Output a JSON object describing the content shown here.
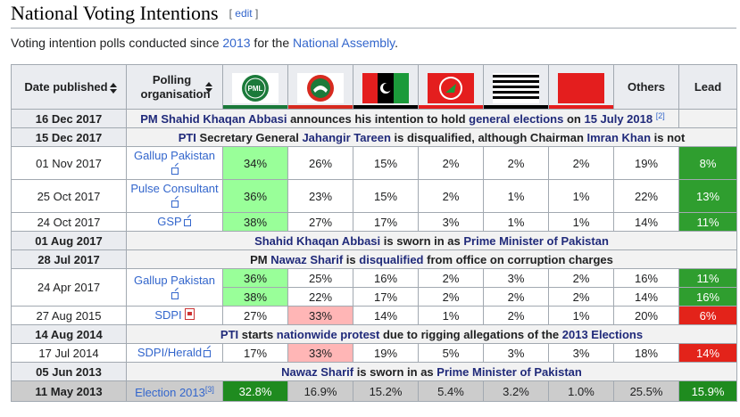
{
  "heading": {
    "title": "National Voting Intentions",
    "edit_open": "[ ",
    "edit": "edit",
    "edit_close": " ]"
  },
  "intro": {
    "pre": "Voting intention polls conducted since ",
    "year": "2013",
    "mid": " for the ",
    "assembly": "National Assembly",
    "post": "."
  },
  "header": {
    "date": "Date published",
    "org": "Polling organisation",
    "others": "Others",
    "lead": "Lead",
    "pmln_text": "PML",
    "parties": [
      {
        "icon": "pmln-tiger-icon",
        "color": "#1b7a3a"
      },
      {
        "icon": "pti-bat-icon",
        "color": "#d72a1f"
      },
      {
        "icon": "ppp-arrow-icon",
        "color": "#000000"
      },
      {
        "icon": "mqm-kite-icon",
        "color": "#e41e1e"
      },
      {
        "icon": "mma-book-icon",
        "color": "#000000"
      },
      {
        "icon": "anp-lantern-icon",
        "color": "#e41e1e"
      }
    ]
  },
  "rows": {
    "e1": {
      "date": "16 Dec 2017",
      "a": "PM ",
      "b": "Shahid Khaqan Abbasi",
      "c": " announces his intention to hold ",
      "d": "general elections",
      "e": " on ",
      "f": "15 July 2018",
      "ref": "[2]"
    },
    "e2": {
      "date": "15 Dec 2017",
      "a": "PTI",
      "b": " Secretary General ",
      "c": "Jahangir Tareen",
      "d": " is disqualified, although Chairman ",
      "e": "Imran Khan",
      "f": " is not"
    },
    "p1": {
      "date": "01 Nov 2017",
      "org": "Gallup Pakistan",
      "v": [
        "34%",
        "26%",
        "15%",
        "2%",
        "2%",
        "2%",
        "19%"
      ],
      "lead": "8%"
    },
    "p2": {
      "date": "25 Oct 2017",
      "org": "Pulse Consultant",
      "v": [
        "36%",
        "23%",
        "15%",
        "2%",
        "1%",
        "1%",
        "22%"
      ],
      "lead": "13%"
    },
    "p3": {
      "date": "24 Oct 2017",
      "org": "GSP",
      "v": [
        "38%",
        "27%",
        "17%",
        "3%",
        "1%",
        "1%",
        "14%"
      ],
      "lead": "11%"
    },
    "e3": {
      "date": "01 Aug 2017",
      "a": "Shahid Khaqan Abbasi",
      "b": " is sworn in as ",
      "c": "Prime Minister of Pakistan"
    },
    "e4": {
      "date": "28 Jul 2017",
      "a": "PM ",
      "b": "Nawaz Sharif",
      "c": " is ",
      "d": "disqualified",
      "e": " from office on corruption charges"
    },
    "p4": {
      "date": "24 Apr 2017",
      "org": "Gallup Pakistan",
      "v": [
        "36%",
        "25%",
        "16%",
        "2%",
        "3%",
        "2%",
        "16%"
      ],
      "lead": "11%"
    },
    "p4b": {
      "v": [
        "38%",
        "22%",
        "17%",
        "2%",
        "2%",
        "2%",
        "14%"
      ],
      "lead": "16%"
    },
    "p5": {
      "date": "27 Aug 2015",
      "org": "SDPI",
      "v": [
        "27%",
        "33%",
        "14%",
        "1%",
        "2%",
        "1%",
        "20%"
      ],
      "lead": "6%"
    },
    "e5": {
      "date": "14 Aug 2014",
      "a": "PTI",
      "b": " starts ",
      "c": "nationwide protest",
      "d": " due to rigging allegations of the ",
      "e": "2013 Elections"
    },
    "p6": {
      "date": "17 Jul 2014",
      "org": "SDPI/Herald",
      "v": [
        "17%",
        "33%",
        "19%",
        "5%",
        "3%",
        "3%",
        "18%"
      ],
      "lead": "14%"
    },
    "e6": {
      "date": "05 Jun 2013",
      "a": "Nawaz Sharif",
      "b": " is sworn in as ",
      "c": "Prime Minister of Pakistan"
    },
    "el": {
      "date": "11 May 2013",
      "org": "Election 2013",
      "ref": "[3]",
      "v": [
        "32.8%",
        "16.9%",
        "15.2%",
        "5.4%",
        "3.2%",
        "1.0%",
        "25.5%"
      ],
      "lead": "15.9%"
    }
  }
}
